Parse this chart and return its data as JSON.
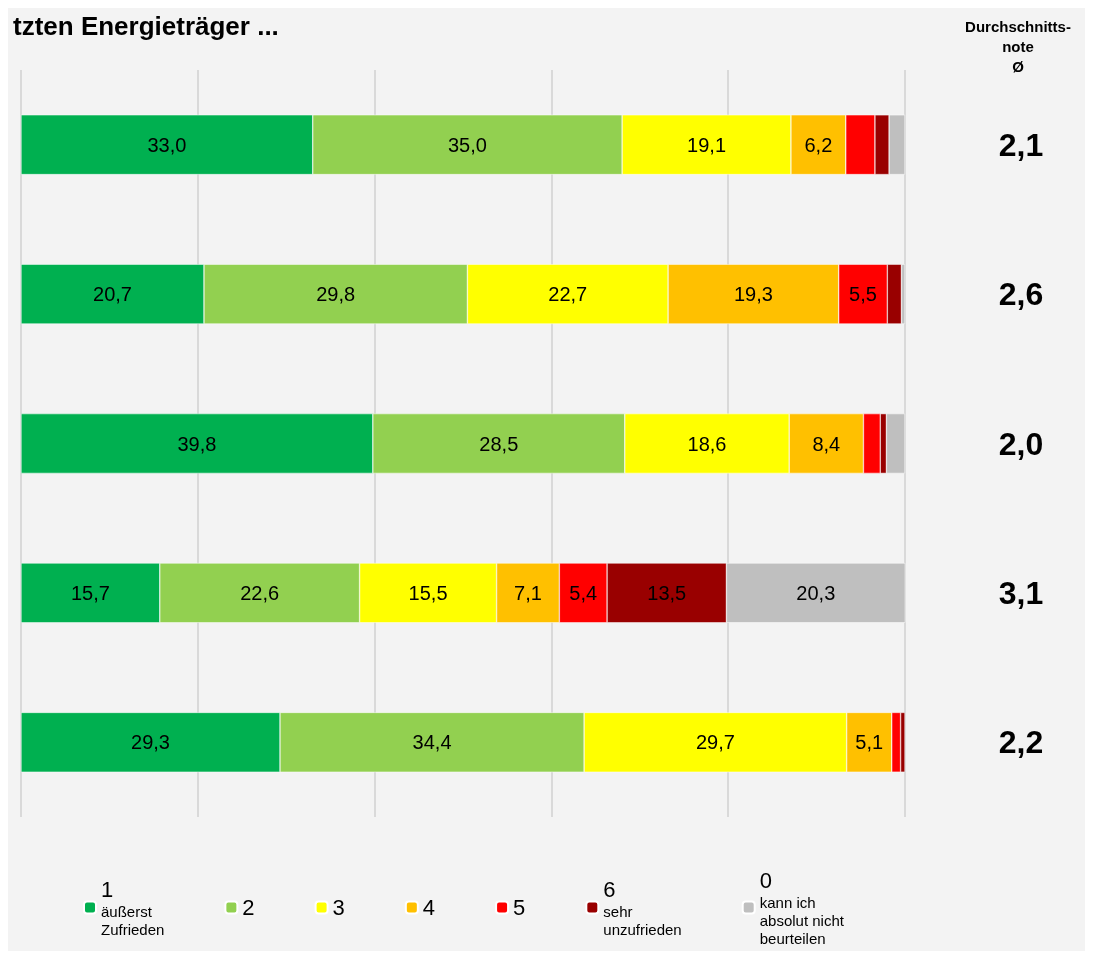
{
  "chart_data": {
    "type": "bar",
    "orientation": "horizontal",
    "stacked": true,
    "title": "tzten Energieträger ...",
    "categories": [
      null,
      null,
      null,
      null,
      null
    ],
    "xlim": [
      0,
      100
    ],
    "xticks": [
      {
        "value": 0,
        "label": null
      },
      {
        "value": 20,
        "label": null
      },
      {
        "value": 40,
        "label": null
      },
      {
        "value": 60,
        "label": null
      },
      {
        "value": 80,
        "label": null
      },
      {
        "value": 100,
        "label": null
      }
    ],
    "grid": "x",
    "legend": "bottom",
    "annotations": [
      "Durchschnitts-\nnote\nØ",
      "2,1",
      "2,6",
      "2,0",
      "3,1",
      "2,2"
    ],
    "series": [
      {
        "name": "1\näußerst\nZufrieden",
        "color": "#00b050",
        "values": [
          33.0,
          20.7,
          39.8,
          15.7,
          29.3
        ],
        "value_labels": [
          "33,0",
          "20,7",
          "39,8",
          "15,7",
          "29,3"
        ]
      },
      {
        "name": "2",
        "color": "#92d050",
        "values": [
          35.0,
          29.8,
          28.5,
          22.6,
          34.4
        ],
        "value_labels": [
          "35,0",
          "29,8",
          "28,5",
          "22,6",
          "34,4"
        ]
      },
      {
        "name": "3",
        "color": "#ffff00",
        "values": [
          19.1,
          22.7,
          18.6,
          15.5,
          29.7
        ],
        "value_labels": [
          "19,1",
          "22,7",
          "18,6",
          "15,5",
          "29,7"
        ]
      },
      {
        "name": "4",
        "color": "#ffc000",
        "values": [
          6.2,
          19.3,
          8.4,
          7.1,
          5.1
        ],
        "value_labels": [
          "6,2",
          "19,3",
          "8,4",
          "7,1",
          "5,1"
        ]
      },
      {
        "name": "5",
        "color": "#ff0000",
        "values": [
          3.3,
          5.5,
          1.9,
          5.4,
          1.0
        ],
        "value_labels": [
          null,
          "5,5",
          null,
          "5,4",
          null
        ]
      },
      {
        "name": "6\nsehr\nunzufrieden",
        "color": "#990000",
        "values": [
          1.6,
          1.6,
          0.7,
          13.5,
          0.5
        ],
        "value_labels": [
          null,
          null,
          null,
          "13,5",
          null
        ]
      },
      {
        "name": "0\nkann ich\nabsolut nicht\nbeurteilen",
        "color": "#bfbfbf",
        "values": [
          1.8,
          0.4,
          2.1,
          20.3,
          0.1
        ],
        "value_labels": [
          null,
          null,
          null,
          "20,3",
          null
        ]
      }
    ]
  }
}
